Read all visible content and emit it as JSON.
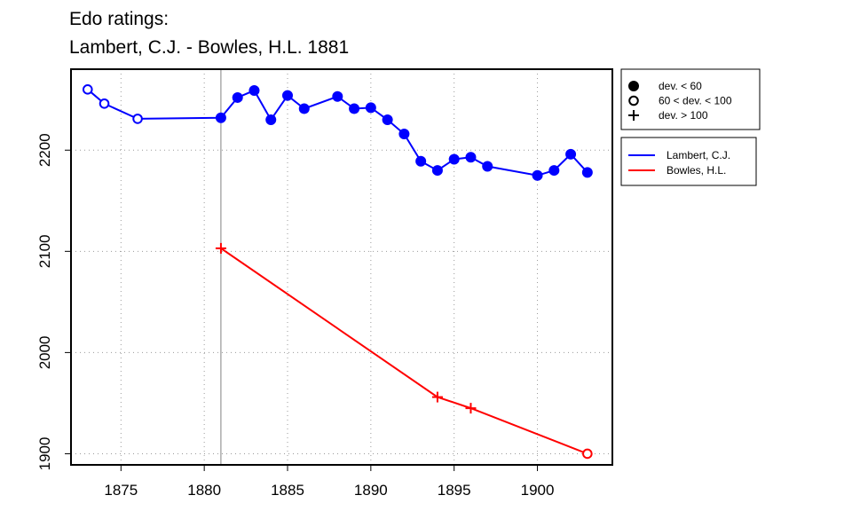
{
  "chart_data": {
    "type": "line",
    "title": "Edo ratings:",
    "subtitle": "Lambert, C.J. - Bowles, H.L. 1881",
    "xlabel": "",
    "ylabel": "",
    "xlim": [
      1872,
      1904.5
    ],
    "ylim": [
      1889,
      2280
    ],
    "x_ticks": [
      1875,
      1880,
      1885,
      1890,
      1895,
      1900
    ],
    "y_ticks": [
      1900,
      2000,
      2100,
      2200
    ],
    "grid": "dotted",
    "reference_line_x": 1881,
    "series": [
      {
        "name": "Lambert, C.J.",
        "color": "#0000ff",
        "points": [
          {
            "x": 1873,
            "y": 2260,
            "marker": "open-circle"
          },
          {
            "x": 1874,
            "y": 2246,
            "marker": "open-circle"
          },
          {
            "x": 1876,
            "y": 2231,
            "marker": "open-circle"
          },
          {
            "x": 1881,
            "y": 2232,
            "marker": "filled-circle"
          },
          {
            "x": 1882,
            "y": 2252,
            "marker": "filled-circle"
          },
          {
            "x": 1883,
            "y": 2259,
            "marker": "filled-circle"
          },
          {
            "x": 1884,
            "y": 2230,
            "marker": "filled-circle"
          },
          {
            "x": 1885,
            "y": 2254,
            "marker": "filled-circle"
          },
          {
            "x": 1886,
            "y": 2241,
            "marker": "filled-circle"
          },
          {
            "x": 1888,
            "y": 2253,
            "marker": "filled-circle"
          },
          {
            "x": 1889,
            "y": 2241,
            "marker": "filled-circle"
          },
          {
            "x": 1890,
            "y": 2242,
            "marker": "filled-circle"
          },
          {
            "x": 1891,
            "y": 2230,
            "marker": "filled-circle"
          },
          {
            "x": 1892,
            "y": 2216,
            "marker": "filled-circle"
          },
          {
            "x": 1893,
            "y": 2189,
            "marker": "filled-circle"
          },
          {
            "x": 1894,
            "y": 2180,
            "marker": "filled-circle"
          },
          {
            "x": 1895,
            "y": 2191,
            "marker": "filled-circle"
          },
          {
            "x": 1896,
            "y": 2193,
            "marker": "filled-circle"
          },
          {
            "x": 1897,
            "y": 2184,
            "marker": "filled-circle"
          },
          {
            "x": 1900,
            "y": 2175,
            "marker": "filled-circle"
          },
          {
            "x": 1901,
            "y": 2180,
            "marker": "filled-circle"
          },
          {
            "x": 1902,
            "y": 2196,
            "marker": "filled-circle"
          },
          {
            "x": 1903,
            "y": 2178,
            "marker": "filled-circle"
          }
        ]
      },
      {
        "name": "Bowles, H.L.",
        "color": "#ff0000",
        "points": [
          {
            "x": 1881,
            "y": 2103,
            "marker": "plus"
          },
          {
            "x": 1894,
            "y": 1956,
            "marker": "plus"
          },
          {
            "x": 1896,
            "y": 1945,
            "marker": "plus"
          },
          {
            "x": 1903,
            "y": 1900,
            "marker": "open-circle"
          }
        ]
      }
    ],
    "marker_legend": {
      "placement": "top-right-outside",
      "entries": [
        {
          "marker": "filled-circle",
          "label": "dev. < 60"
        },
        {
          "marker": "open-circle",
          "label": "60 < dev. < 100"
        },
        {
          "marker": "plus",
          "label": "dev. > 100"
        }
      ]
    },
    "series_legend": {
      "placement": "right-outside",
      "entries": [
        {
          "label": "Lambert, C.J.",
          "color": "#0000ff"
        },
        {
          "label": "Bowles, H.L.",
          "color": "#ff0000"
        }
      ]
    }
  }
}
